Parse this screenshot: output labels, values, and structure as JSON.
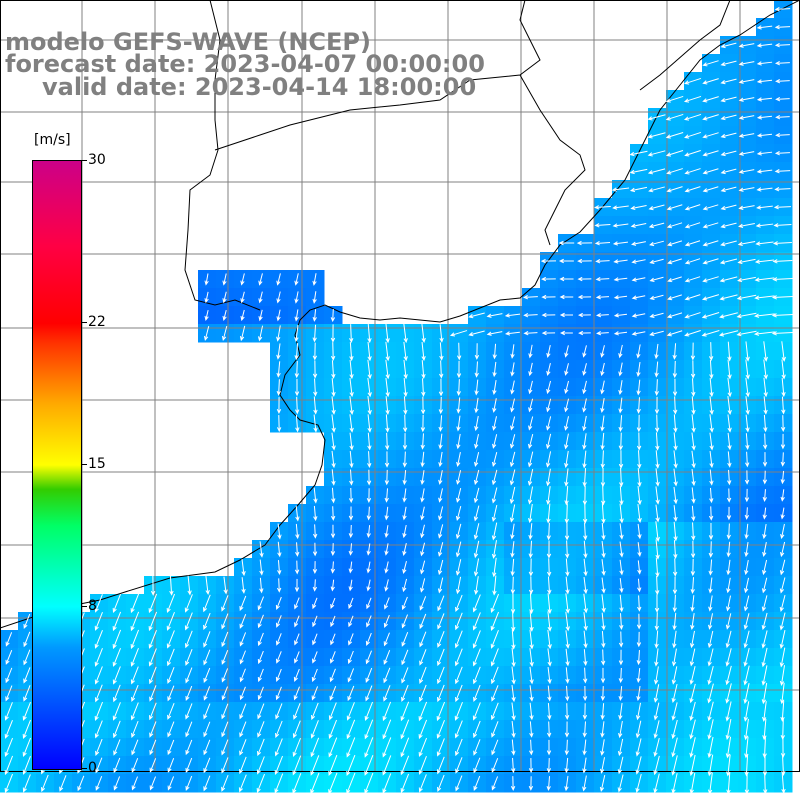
{
  "header": {
    "line1": "modelo GEFS-WAVE (NCEP)",
    "line2": "forecast date: 2023-04-07 00:00:00",
    "line3": "valid date: 2023-04-14 18:00:00"
  },
  "colorbar": {
    "unit": "[m/s]",
    "min": 0,
    "max": 30,
    "ticks": [
      "30",
      "22",
      "15",
      "8",
      "0"
    ],
    "tick_values": [
      30,
      22,
      15,
      8,
      0
    ],
    "colors": [
      "#0000ff",
      "#0099ff",
      "#00ffff",
      "#00ff66",
      "#ffff00",
      "#ff3300",
      "#ff0000",
      "#cc0088"
    ]
  },
  "map": {
    "land_color": "#ffffff",
    "coast_color": "#000000",
    "grid_color": "#808080",
    "vector_color": "#ffffff",
    "field": "wind speed with direction arrows over ocean",
    "dominant_direction": "southward / south-southwest over most of the basin; westward near the northeast coast",
    "speed_range_shown": [
      0,
      9
    ]
  }
}
